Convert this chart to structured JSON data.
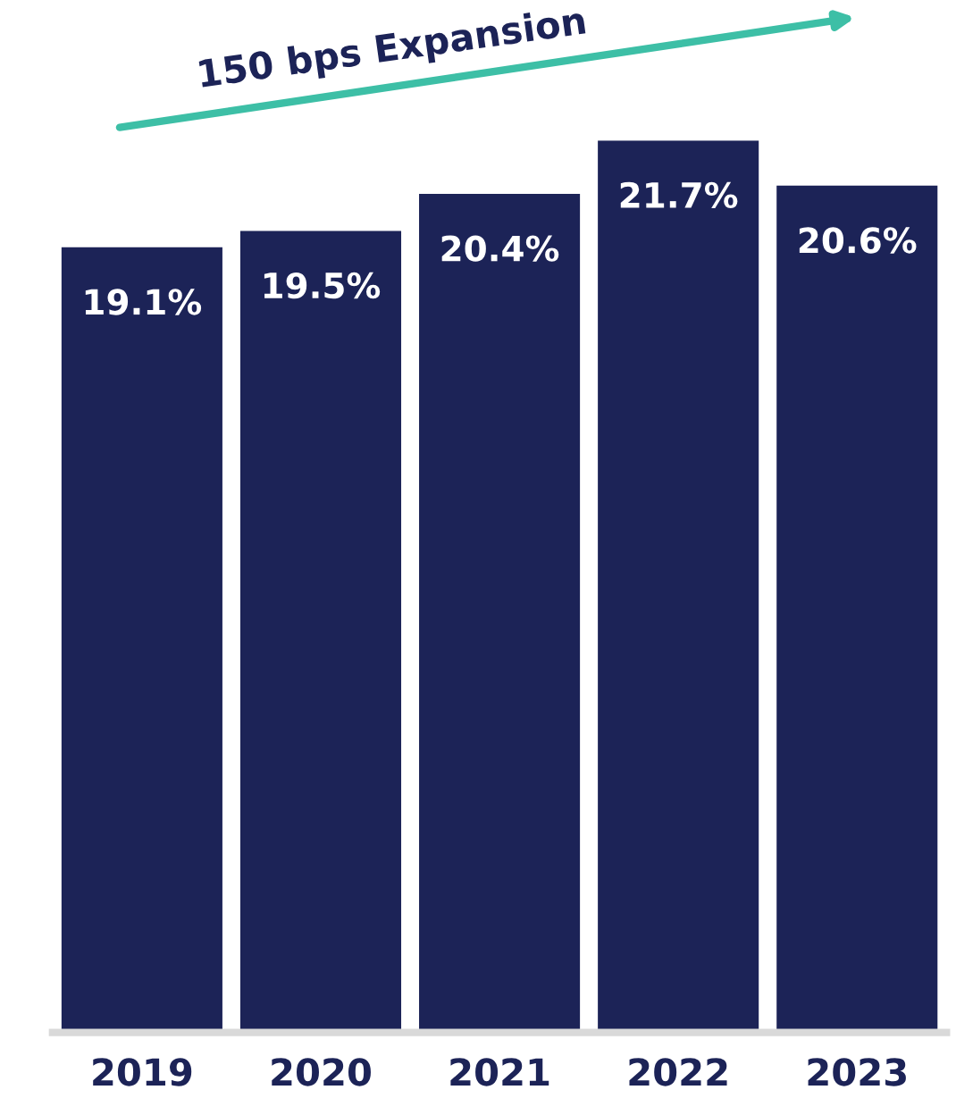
{
  "chart_data": {
    "type": "bar",
    "categories": [
      "2019",
      "2020",
      "2021",
      "2022",
      "2023"
    ],
    "values": [
      19.1,
      19.5,
      20.4,
      21.7,
      20.6
    ],
    "value_labels": [
      "19.1%",
      "19.5%",
      "20.4%",
      "21.7%",
      "20.6%"
    ],
    "color": "#1c2357",
    "tick_labels": "x",
    "grid": false,
    "legend": false,
    "annotations": [
      "150 bps Expansion"
    ]
  }
}
